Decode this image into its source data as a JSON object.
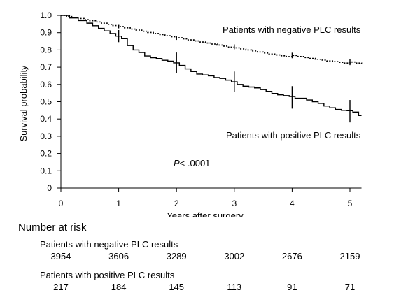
{
  "chart_data": {
    "type": "line",
    "ylabel": "Survival probability",
    "xlabel": "Years after surgery",
    "xlim": [
      0,
      5.2
    ],
    "ylim": [
      0,
      1.0
    ],
    "x_ticks": [
      "0",
      "1",
      "2",
      "3",
      "4",
      "5"
    ],
    "y_ticks": [
      "0",
      "0.1",
      "0.2",
      "0.3",
      "0.4",
      "0.5",
      "0.6",
      "0.7",
      "0.8",
      "0.9",
      "1.0"
    ],
    "grid": false,
    "annotation": {
      "p_italic": "P",
      "p_rest": "< .0001"
    },
    "series": [
      {
        "name": "Patients with negative PLC results",
        "style": "dotted",
        "color": "#000000",
        "x": [
          0,
          0.1,
          0.2,
          0.3,
          0.4,
          0.5,
          0.6,
          0.7,
          0.8,
          0.9,
          1.0,
          1.1,
          1.2,
          1.3,
          1.4,
          1.5,
          1.6,
          1.7,
          1.8,
          1.9,
          2.0,
          2.1,
          2.2,
          2.3,
          2.4,
          2.5,
          2.6,
          2.7,
          2.8,
          2.9,
          3.0,
          3.1,
          3.2,
          3.3,
          3.4,
          3.5,
          3.6,
          3.7,
          3.8,
          3.9,
          4.0,
          4.1,
          4.2,
          4.3,
          4.4,
          4.5,
          4.6,
          4.7,
          4.8,
          4.9,
          5.0,
          5.1,
          5.2
        ],
        "y": [
          1.0,
          0.993,
          0.988,
          0.982,
          0.975,
          0.969,
          0.962,
          0.955,
          0.948,
          0.941,
          0.935,
          0.928,
          0.921,
          0.915,
          0.908,
          0.901,
          0.895,
          0.889,
          0.882,
          0.876,
          0.87,
          0.864,
          0.858,
          0.852,
          0.846,
          0.84,
          0.834,
          0.828,
          0.822,
          0.816,
          0.812,
          0.806,
          0.8,
          0.794,
          0.788,
          0.782,
          0.776,
          0.771,
          0.766,
          0.761,
          0.768,
          0.762,
          0.756,
          0.751,
          0.746,
          0.741,
          0.736,
          0.732,
          0.728,
          0.724,
          0.73,
          0.724,
          0.718
        ],
        "ci_marks": [
          {
            "x": 1.0,
            "y": 0.935,
            "lo": 0.925,
            "hi": 0.945
          },
          {
            "x": 2.0,
            "y": 0.87,
            "lo": 0.858,
            "hi": 0.882
          },
          {
            "x": 3.0,
            "y": 0.818,
            "lo": 0.804,
            "hi": 0.832
          },
          {
            "x": 4.0,
            "y": 0.768,
            "lo": 0.752,
            "hi": 0.784
          },
          {
            "x": 5.0,
            "y": 0.73,
            "lo": 0.712,
            "hi": 0.748
          }
        ]
      },
      {
        "name": "Patients with positive PLC results",
        "style": "solid",
        "color": "#000000",
        "x": [
          0,
          0.15,
          0.3,
          0.45,
          0.55,
          0.65,
          0.75,
          0.85,
          0.95,
          1.05,
          1.15,
          1.25,
          1.35,
          1.45,
          1.55,
          1.65,
          1.75,
          1.85,
          1.95,
          2.05,
          2.15,
          2.25,
          2.35,
          2.45,
          2.55,
          2.65,
          2.75,
          2.85,
          2.95,
          3.05,
          3.15,
          3.25,
          3.35,
          3.45,
          3.55,
          3.65,
          3.75,
          3.85,
          3.95,
          4.05,
          4.15,
          4.25,
          4.35,
          4.45,
          4.55,
          4.65,
          4.75,
          4.85,
          4.95,
          5.05,
          5.15,
          5.2
        ],
        "y": [
          1.0,
          0.985,
          0.97,
          0.955,
          0.94,
          0.925,
          0.91,
          0.895,
          0.88,
          0.865,
          0.825,
          0.8,
          0.785,
          0.765,
          0.755,
          0.75,
          0.74,
          0.735,
          0.725,
          0.71,
          0.69,
          0.675,
          0.66,
          0.655,
          0.65,
          0.64,
          0.635,
          0.625,
          0.615,
          0.6,
          0.59,
          0.585,
          0.58,
          0.57,
          0.56,
          0.548,
          0.54,
          0.535,
          0.53,
          0.52,
          0.52,
          0.51,
          0.5,
          0.49,
          0.475,
          0.465,
          0.455,
          0.45,
          0.448,
          0.44,
          0.42,
          0.42
        ],
        "ci_marks": [
          {
            "x": 1.0,
            "y": 0.88,
            "lo": 0.845,
            "hi": 0.915
          },
          {
            "x": 2.0,
            "y": 0.725,
            "lo": 0.665,
            "hi": 0.785
          },
          {
            "x": 3.0,
            "y": 0.615,
            "lo": 0.555,
            "hi": 0.675
          },
          {
            "x": 4.0,
            "y": 0.525,
            "lo": 0.46,
            "hi": 0.59
          },
          {
            "x": 5.0,
            "y": 0.448,
            "lo": 0.38,
            "hi": 0.51
          }
        ]
      }
    ]
  },
  "risk_table": {
    "title": "Number at risk",
    "groups": [
      {
        "label": "Patients with negative PLC results",
        "values": [
          "3954",
          "3606",
          "3289",
          "3002",
          "2676",
          "2159"
        ]
      },
      {
        "label": "Patients with positive PLC results",
        "values": [
          "217",
          "184",
          "145",
          "113",
          "91",
          "71"
        ]
      }
    ]
  }
}
